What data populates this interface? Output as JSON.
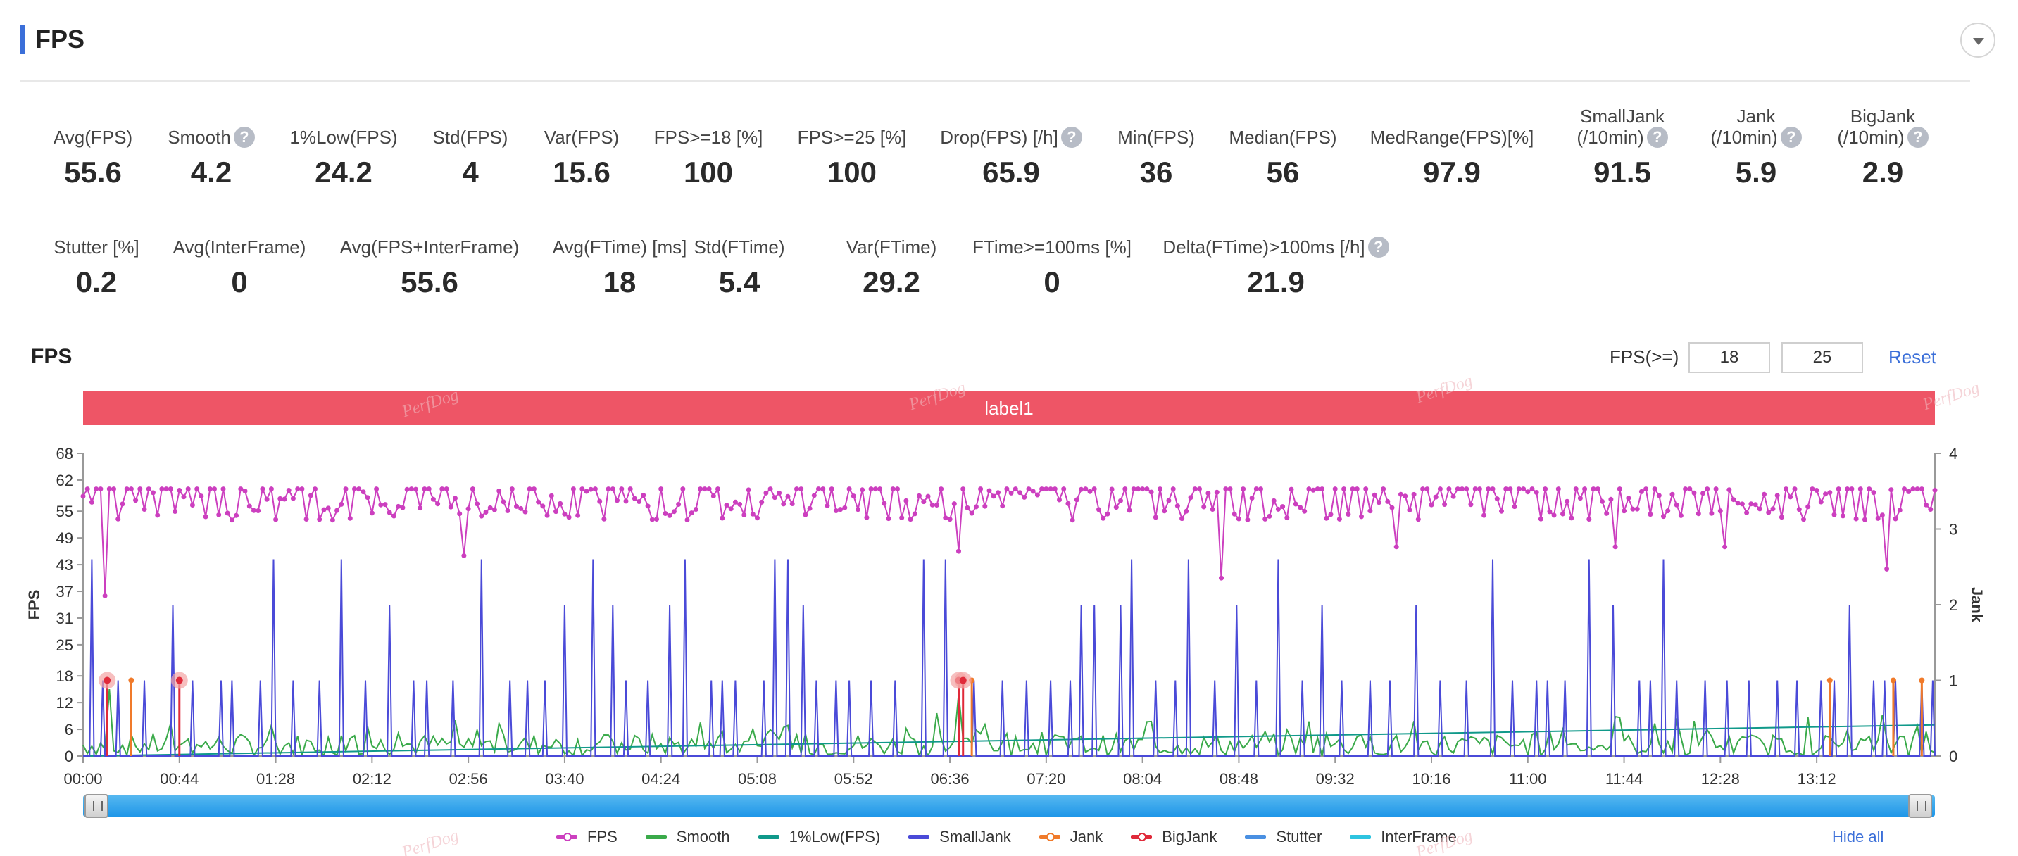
{
  "header": {
    "title": "FPS"
  },
  "metrics_row1": [
    {
      "label": "Avg(FPS)",
      "value": "55.6"
    },
    {
      "label": "Smooth",
      "value": "4.2",
      "help": true
    },
    {
      "label": "1%Low(FPS)",
      "value": "24.2"
    },
    {
      "label": "Std(FPS)",
      "value": "4"
    },
    {
      "label": "Var(FPS)",
      "value": "15.6"
    },
    {
      "label": "FPS>=18 [%]",
      "value": "100"
    },
    {
      "label": "FPS>=25 [%]",
      "value": "100"
    },
    {
      "label": "Drop(FPS) [/h]",
      "value": "65.9",
      "help": true
    },
    {
      "label": "Min(FPS)",
      "value": "36"
    },
    {
      "label": "Median(FPS)",
      "value": "56"
    },
    {
      "label": "MedRange(FPS)[%]",
      "value": "97.9"
    },
    {
      "label": "SmallJank",
      "label2": "(/10min)",
      "value": "91.5",
      "help": true
    },
    {
      "label": "Jank",
      "label2": "(/10min)",
      "value": "5.9",
      "help": true
    },
    {
      "label": "BigJank",
      "label2": "(/10min)",
      "value": "2.9",
      "help": true
    }
  ],
  "metrics_row2": [
    {
      "label": "Stutter [%]",
      "value": "0.2"
    },
    {
      "label": "Avg(InterFrame)",
      "value": "0"
    },
    {
      "label": "Avg(FPS+InterFrame)",
      "value": "55.6"
    },
    {
      "label": "Avg(FTime) [ms]",
      "value": "18"
    },
    {
      "label": "Std(FTime)",
      "value": "5.4"
    },
    {
      "label": "Var(FTime)",
      "value": "29.2"
    },
    {
      "label": "FTime>=100ms [%]",
      "value": "0"
    },
    {
      "label": "Delta(FTime)>100ms [/h]",
      "value": "21.9",
      "help": true
    }
  ],
  "help_glyph": "?",
  "chart_panel": {
    "title": "FPS",
    "threshold_label": "FPS(>=)",
    "threshold_1": "18",
    "threshold_2": "25",
    "reset_label": "Reset",
    "label_bar": "label1",
    "hide_all_label": "Hide all",
    "watermark": "PerfDog"
  },
  "chart_data": {
    "type": "line",
    "ylabel": "FPS",
    "y2label": "Jank",
    "ylim": [
      0,
      68
    ],
    "yticks": [
      0,
      6,
      12,
      18,
      25,
      31,
      37,
      43,
      49,
      55,
      62,
      68
    ],
    "y2lim": [
      0,
      4
    ],
    "y2ticks": [
      0,
      1,
      2,
      3,
      4
    ],
    "x_range_seconds": [
      0,
      846
    ],
    "xticks": [
      "00:00",
      "00:44",
      "01:28",
      "02:12",
      "02:56",
      "03:40",
      "04:24",
      "05:08",
      "05:52",
      "06:36",
      "07:20",
      "08:04",
      "08:48",
      "09:32",
      "10:16",
      "11:00",
      "11:44",
      "12:28",
      "13:12"
    ],
    "series": [
      {
        "name": "FPS",
        "color": "#cc3fbf",
        "marker": "dot"
      },
      {
        "name": "Smooth",
        "color": "#3aaa4a"
      },
      {
        "name": "1%Low(FPS)",
        "color": "#10998a"
      },
      {
        "name": "SmallJank",
        "color": "#4a4ad8"
      },
      {
        "name": "Jank",
        "color": "#f07a2a",
        "marker": "dot"
      },
      {
        "name": "BigJank",
        "color": "#e02a3a",
        "marker": "dot"
      },
      {
        "name": "Stutter",
        "color": "#4a90e2"
      },
      {
        "name": "InterFrame",
        "color": "#2ec4e0"
      }
    ],
    "fps_dips": [
      {
        "t": 11,
        "fps": 36
      },
      {
        "t": 175,
        "fps": 45
      },
      {
        "t": 400,
        "fps": 52
      },
      {
        "t": 400,
        "fps": 46
      },
      {
        "t": 520,
        "fps": 40
      },
      {
        "t": 521,
        "fps": 44
      },
      {
        "t": 600,
        "fps": 47
      },
      {
        "t": 700,
        "fps": 47
      },
      {
        "t": 750,
        "fps": 47
      },
      {
        "t": 825,
        "fps": 42
      }
    ],
    "jank_events": [
      22,
      406,
      798,
      827,
      840
    ],
    "bigjank_events": [
      11,
      44,
      400,
      402
    ]
  }
}
